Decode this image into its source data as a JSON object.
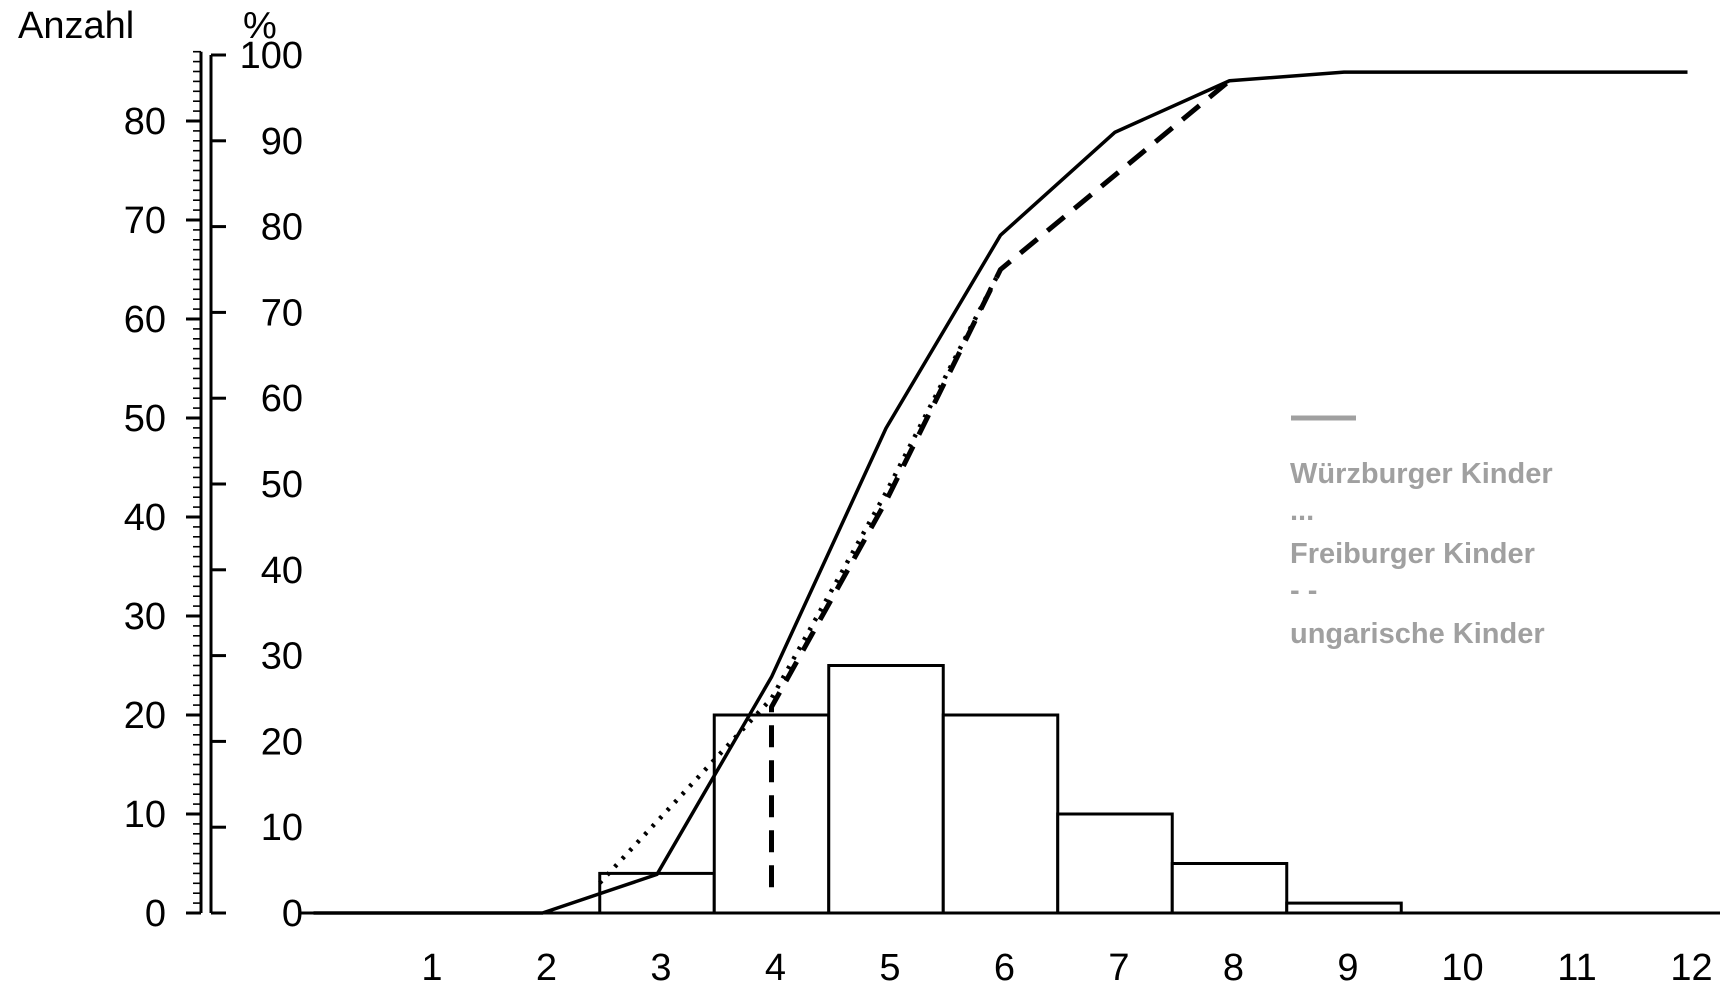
{
  "chart_data": {
    "type": "bar",
    "left_axis_label": "Anzahl",
    "right_axis_label": "%",
    "x_ticks": [
      "1",
      "2",
      "3",
      "4",
      "5",
      "6",
      "7",
      "8",
      "9",
      "10",
      "11",
      "12"
    ],
    "count_axis": {
      "range": [
        0,
        87
      ],
      "ticks": [
        "0",
        "10",
        "20",
        "30",
        "40",
        "50",
        "60",
        "70",
        "80"
      ]
    },
    "percent_axis": {
      "range": [
        0,
        100
      ],
      "ticks": [
        "0",
        "10",
        "20",
        "30",
        "40",
        "50",
        "60",
        "70",
        "80",
        "90",
        "100"
      ]
    },
    "histogram": {
      "bins": [
        {
          "from": 2.5,
          "to": 3.5,
          "count": 4
        },
        {
          "from": 3.5,
          "to": 4.5,
          "count": 20
        },
        {
          "from": 4.5,
          "to": 5.5,
          "count": 25
        },
        {
          "from": 5.5,
          "to": 6.5,
          "count": 20
        },
        {
          "from": 6.5,
          "to": 7.5,
          "count": 10
        },
        {
          "from": 7.5,
          "to": 8.5,
          "count": 5
        },
        {
          "from": 8.5,
          "to": 9.5,
          "count": 1
        }
      ]
    },
    "series": [
      {
        "style": "solid",
        "points": [
          [
            0,
            0
          ],
          [
            2,
            0
          ],
          [
            3,
            4.5
          ],
          [
            4,
            27.5
          ],
          [
            5,
            56.5
          ],
          [
            6,
            79
          ],
          [
            7,
            91
          ],
          [
            8,
            97
          ],
          [
            9,
            98
          ],
          [
            12,
            98
          ]
        ]
      },
      {
        "style": "dotted",
        "points": [
          [
            2.5,
            3.5
          ],
          [
            4,
            25
          ],
          [
            5,
            49
          ],
          [
            6,
            75
          ]
        ]
      },
      {
        "style": "dashed",
        "points": [
          [
            4,
            3
          ],
          [
            4,
            24
          ],
          [
            5,
            48
          ],
          [
            6,
            75
          ],
          [
            8,
            97
          ]
        ]
      }
    ],
    "legend": {
      "position": "right",
      "entries": [
        {
          "marker": "—",
          "label": "Würzburger Kinder",
          "color": "#a0a0a0"
        },
        {
          "marker": "...",
          "label": "Freiburger Kinder",
          "color": "#a0a0a0"
        },
        {
          "marker": "- -",
          "label": "ungarische Kinder",
          "color": "#a0a0a0"
        }
      ]
    },
    "colors": {
      "line": "#000000",
      "bar_fill": "#ffffff",
      "legend": "#a0a0a0"
    }
  }
}
